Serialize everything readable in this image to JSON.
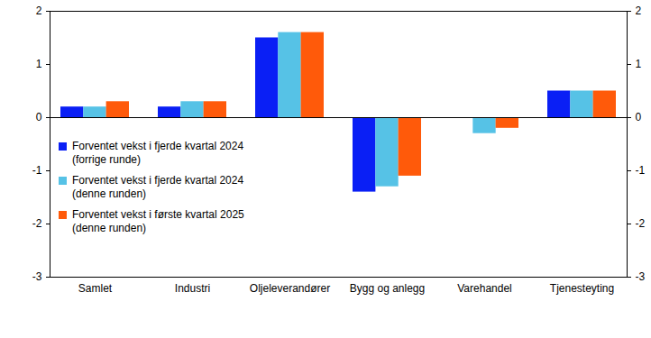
{
  "chart_data": {
    "type": "bar",
    "categories": [
      "Samlet",
      "Industri",
      "Oljeleverandører",
      "Bygg og anlegg",
      "Varehandel",
      "Tjenesteyting"
    ],
    "series": [
      {
        "name": "Forventet vekst i fjerde kvartal 2024 (forrige runde)",
        "color": "#0a1ff5",
        "values": [
          0.2,
          0.2,
          1.5,
          -1.4,
          0,
          0.5
        ]
      },
      {
        "name": "Forventet vekst i fjerde kvartal 2024 (denne runden)",
        "color": "#56c2e6",
        "values": [
          0.2,
          0.3,
          1.6,
          -1.3,
          -0.3,
          0.5
        ]
      },
      {
        "name": "Forventet vekst i første kvartal 2025 (denne runden)",
        "color": "#ff5a0a",
        "values": [
          0.3,
          0.3,
          1.6,
          -1.1,
          -0.2,
          0.5
        ]
      }
    ],
    "ylim": [
      -3,
      2
    ],
    "yticks": [
      -3,
      -2,
      -1,
      0,
      1,
      2
    ],
    "grid": false,
    "legend": "left"
  }
}
